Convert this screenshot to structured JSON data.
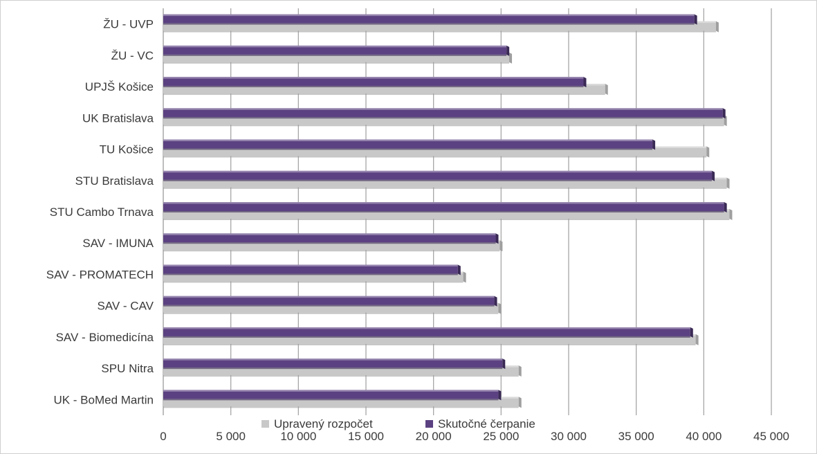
{
  "chart_data": {
    "type": "bar",
    "orientation": "horizontal",
    "categories": [
      "ŽU - UVP",
      "ŽU - VC",
      "UPJŠ Košice",
      "UK Bratislava",
      "TU Košice",
      "STU Bratislava",
      "STU Cambo Trnava",
      "SAV - IMUNA",
      "SAV - PROMATECH",
      "SAV - CAV",
      "SAV - Biomedicína",
      "SPU Nitra",
      "UK - BoMed Martin"
    ],
    "series": [
      {
        "name": "Skutočné čerpanie",
        "color": "#5b4181",
        "values": [
          39300,
          25400,
          31100,
          41400,
          36200,
          40600,
          41500,
          24600,
          21800,
          24500,
          39000,
          25100,
          24800
        ]
      },
      {
        "name": "Upravený rozpočet",
        "color": "#c8c8c8",
        "values": [
          40900,
          25600,
          32700,
          41500,
          40200,
          41700,
          41900,
          24900,
          22200,
          24800,
          39400,
          26300,
          26300
        ]
      }
    ],
    "xlim": [
      0,
      45000
    ],
    "xticks": [
      "0",
      "5 000",
      "10 000",
      "15 000",
      "20 000",
      "25 000",
      "30 000",
      "35 000",
      "40 000",
      "45 000"
    ],
    "grid": "vertical",
    "legend": "bottom",
    "title": "",
    "xlabel": "",
    "ylabel": ""
  }
}
